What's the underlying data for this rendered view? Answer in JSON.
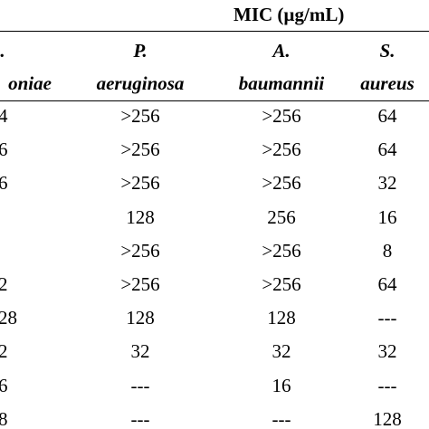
{
  "table": {
    "group_header": "MIC (µg/mL)",
    "columns": [
      {
        "line1": ".",
        "line2": "oniae"
      },
      {
        "line1": "P.",
        "line2": "aeruginosa"
      },
      {
        "line1": "A.",
        "line2": "baumannii"
      },
      {
        "line1": "S.",
        "line2": "aureus"
      }
    ],
    "rows": [
      [
        "4",
        ">256",
        ">256",
        "64"
      ],
      [
        "6",
        ">256",
        ">256",
        "64"
      ],
      [
        "6",
        ">256",
        ">256",
        "32"
      ],
      [
        "",
        "128",
        "256",
        "16"
      ],
      [
        "",
        ">256",
        ">256",
        "8"
      ],
      [
        "2",
        ">256",
        ">256",
        "64"
      ],
      [
        "28",
        "128",
        "128",
        "---"
      ],
      [
        "2",
        "32",
        "32",
        "32"
      ],
      [
        "6",
        "---",
        "16",
        "---"
      ],
      [
        "8",
        "---",
        "---",
        "128"
      ]
    ]
  }
}
